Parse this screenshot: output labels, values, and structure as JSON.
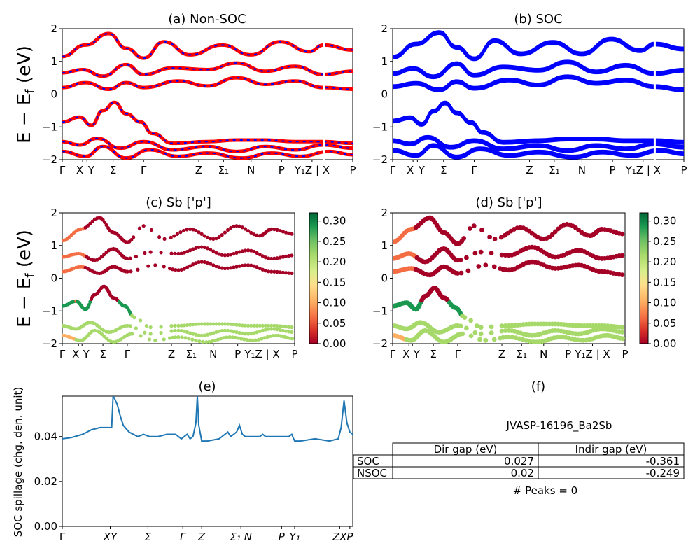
{
  "figure": {
    "jid_label": "JVASP-16196_Ba2Sb",
    "peaks_label": "# Peaks = 0",
    "ylabel_main": "E − E",
    "ylabel_main_sub": "f",
    "ylabel_main_unit": " (eV)",
    "kpath_labels": [
      "Γ",
      "X",
      "Y",
      "Σ",
      "Γ",
      "Z",
      "Σ",
      "N",
      "P",
      "Y",
      "Z | X",
      "P"
    ]
  },
  "colors": {
    "nonsoc_red": "#ff0000",
    "nonsoc_blue_dash": "#0000ff",
    "soc_blue": "#0000ff",
    "spillage_line": "#1f77b4",
    "cmap": [
      "#a50026",
      "#d73027",
      "#f46d43",
      "#fdae61",
      "#fee08b",
      "#d9ef8b",
      "#a6d96a",
      "#66bd63",
      "#1a9850",
      "#006837"
    ]
  },
  "chart_data": [
    {
      "panel": "a",
      "type": "line",
      "title": "(a) Non-SOC",
      "ylabel": "E − E_f (eV)",
      "ylim": [
        -2,
        2
      ],
      "yticks": [
        "2",
        "1",
        "0",
        "−1",
        "−2"
      ],
      "xticks": [
        "Γ",
        "X",
        "Y",
        "Σ",
        "Γ",
        "Z",
        "Σ1",
        "N",
        "P",
        "Y1Z | X",
        "P"
      ],
      "series": [
        {
          "points": [
            [
              0,
              1.15
            ],
            [
              0.08,
              1.5
            ],
            [
              0.16,
              1.85
            ],
            [
              0.22,
              1.4
            ],
            [
              0.28,
              1.1
            ],
            [
              0.35,
              1.6
            ],
            [
              0.44,
              1.2
            ],
            [
              0.55,
              1.5
            ],
            [
              0.65,
              1.2
            ],
            [
              0.75,
              1.6
            ],
            [
              0.85,
              1.3
            ],
            [
              0.9,
              1.5
            ],
            [
              1,
              1.35
            ]
          ]
        },
        {
          "points": [
            [
              0,
              0.65
            ],
            [
              0.07,
              0.75
            ],
            [
              0.14,
              0.55
            ],
            [
              0.22,
              0.9
            ],
            [
              0.28,
              0.6
            ],
            [
              0.38,
              0.8
            ],
            [
              0.5,
              0.75
            ],
            [
              0.6,
              0.95
            ],
            [
              0.7,
              0.7
            ],
            [
              0.8,
              0.85
            ],
            [
              0.9,
              0.6
            ],
            [
              1,
              0.7
            ]
          ]
        },
        {
          "points": [
            [
              0,
              0.2
            ],
            [
              0.08,
              0.35
            ],
            [
              0.16,
              0.15
            ],
            [
              0.22,
              0.35
            ],
            [
              0.28,
              0.2
            ],
            [
              0.4,
              0.4
            ],
            [
              0.5,
              0.25
            ],
            [
              0.6,
              0.5
            ],
            [
              0.7,
              0.3
            ],
            [
              0.8,
              0.4
            ],
            [
              0.9,
              0.2
            ],
            [
              1,
              0.15
            ]
          ]
        },
        {
          "points": [
            [
              0,
              -0.85
            ],
            [
              0.06,
              -0.7
            ],
            [
              0.1,
              -0.95
            ],
            [
              0.14,
              -0.5
            ],
            [
              0.18,
              -0.25
            ],
            [
              0.22,
              -0.6
            ],
            [
              0.27,
              -0.85
            ],
            [
              0.31,
              -1.2
            ],
            [
              0.38,
              -1.5
            ],
            [
              0.5,
              -1.45
            ],
            [
              0.6,
              -1.4
            ],
            [
              0.7,
              -1.4
            ],
            [
              0.8,
              -1.45
            ],
            [
              0.9,
              -1.45
            ],
            [
              1,
              -1.5
            ]
          ]
        },
        {
          "points": [
            [
              0,
              -1.45
            ],
            [
              0.06,
              -1.55
            ],
            [
              0.12,
              -1.35
            ],
            [
              0.2,
              -1.65
            ],
            [
              0.28,
              -1.45
            ],
            [
              0.38,
              -1.7
            ],
            [
              0.5,
              -1.6
            ],
            [
              0.6,
              -1.75
            ],
            [
              0.7,
              -1.6
            ],
            [
              0.8,
              -1.7
            ],
            [
              0.9,
              -1.55
            ],
            [
              1,
              -1.65
            ]
          ]
        },
        {
          "points": [
            [
              0,
              -1.75
            ],
            [
              0.08,
              -1.9
            ],
            [
              0.14,
              -1.6
            ],
            [
              0.22,
              -1.95
            ],
            [
              0.3,
              -1.7
            ],
            [
              0.4,
              -1.9
            ],
            [
              0.5,
              -1.8
            ],
            [
              0.62,
              -1.95
            ],
            [
              0.72,
              -1.8
            ],
            [
              0.82,
              -1.9
            ],
            [
              0.92,
              -1.75
            ],
            [
              1,
              -1.85
            ]
          ]
        }
      ]
    },
    {
      "panel": "b",
      "type": "line",
      "title": "(b) SOC",
      "ylim": [
        -2,
        2
      ],
      "yticks": [
        "2",
        "1",
        "0",
        "−1",
        "−2"
      ],
      "xticks": [
        "Γ",
        "X",
        "Y",
        "Σ",
        "Γ",
        "Z",
        "Σ1",
        "N",
        "P",
        "Y1Z | X",
        "P"
      ],
      "series": [
        {
          "points": [
            [
              0,
              1.1
            ],
            [
              0.08,
              1.5
            ],
            [
              0.16,
              1.85
            ],
            [
              0.22,
              1.4
            ],
            [
              0.28,
              1.05
            ],
            [
              0.35,
              1.6
            ],
            [
              0.44,
              1.2
            ],
            [
              0.55,
              1.55
            ],
            [
              0.65,
              1.2
            ],
            [
              0.75,
              1.65
            ],
            [
              0.85,
              1.3
            ],
            [
              0.9,
              1.5
            ],
            [
              1,
              1.35
            ]
          ]
        },
        {
          "points": [
            [
              0,
              0.6
            ],
            [
              0.07,
              0.75
            ],
            [
              0.14,
              0.5
            ],
            [
              0.22,
              0.9
            ],
            [
              0.28,
              0.55
            ],
            [
              0.38,
              0.8
            ],
            [
              0.5,
              0.7
            ],
            [
              0.6,
              0.95
            ],
            [
              0.7,
              0.65
            ],
            [
              0.8,
              0.85
            ],
            [
              0.9,
              0.6
            ],
            [
              1,
              0.7
            ]
          ]
        },
        {
          "points": [
            [
              0,
              0.2
            ],
            [
              0.08,
              0.3
            ],
            [
              0.16,
              0.1
            ],
            [
              0.22,
              0.35
            ],
            [
              0.28,
              0.15
            ],
            [
              0.4,
              0.4
            ],
            [
              0.5,
              0.25
            ],
            [
              0.6,
              0.5
            ],
            [
              0.7,
              0.3
            ],
            [
              0.8,
              0.4
            ],
            [
              0.9,
              0.2
            ],
            [
              1,
              0.1
            ]
          ]
        },
        {
          "points": [
            [
              0,
              -0.85
            ],
            [
              0.06,
              -0.75
            ],
            [
              0.1,
              -0.95
            ],
            [
              0.14,
              -0.55
            ],
            [
              0.18,
              -0.3
            ],
            [
              0.22,
              -0.6
            ],
            [
              0.27,
              -0.9
            ],
            [
              0.31,
              -1.2
            ],
            [
              0.38,
              -1.5
            ],
            [
              0.5,
              -1.45
            ],
            [
              0.6,
              -1.4
            ],
            [
              0.7,
              -1.4
            ],
            [
              0.8,
              -1.45
            ],
            [
              0.9,
              -1.45
            ],
            [
              1,
              -1.5
            ]
          ]
        },
        {
          "points": [
            [
              0,
              -1.45
            ],
            [
              0.06,
              -1.55
            ],
            [
              0.12,
              -1.35
            ],
            [
              0.2,
              -1.65
            ],
            [
              0.28,
              -1.45
            ],
            [
              0.38,
              -1.7
            ],
            [
              0.5,
              -1.6
            ],
            [
              0.6,
              -1.75
            ],
            [
              0.7,
              -1.6
            ],
            [
              0.8,
              -1.7
            ],
            [
              0.9,
              -1.55
            ],
            [
              1,
              -1.65
            ]
          ]
        },
        {
          "points": [
            [
              0,
              -1.75
            ],
            [
              0.08,
              -1.9
            ],
            [
              0.14,
              -1.6
            ],
            [
              0.22,
              -1.95
            ],
            [
              0.3,
              -1.7
            ],
            [
              0.4,
              -1.9
            ],
            [
              0.5,
              -1.8
            ],
            [
              0.62,
              -1.95
            ],
            [
              0.72,
              -1.8
            ],
            [
              0.82,
              -1.9
            ],
            [
              0.92,
              -1.75
            ],
            [
              1,
              -1.85
            ]
          ]
        }
      ]
    },
    {
      "panel": "c",
      "type": "scatter",
      "title": "(c)  Sb ['p']",
      "ylim": [
        -2,
        2
      ],
      "yticks": [
        "2",
        "1",
        "0",
        "−1",
        "−2"
      ],
      "xticks": [
        "Γ",
        "X",
        "Y",
        "Σ",
        "Γ",
        "Z",
        "Σ1",
        "N",
        "P",
        "Y1Z | X",
        "P"
      ],
      "colorbar_ticks": [
        "0.00",
        "0.05",
        "0.10",
        "0.15",
        "0.20",
        "0.25",
        "0.30"
      ],
      "colorbar_range": [
        0,
        0.32
      ]
    },
    {
      "panel": "d",
      "type": "scatter",
      "title": "(d) Sb ['p']",
      "ylim": [
        -2,
        2
      ],
      "yticks": [
        "2",
        "1",
        "0",
        "−1",
        "−2"
      ],
      "xticks": [
        "Γ",
        "X",
        "Y",
        "Σ",
        "Γ",
        "Z",
        "Σ1",
        "N",
        "P",
        "Y1Z | X",
        "P"
      ],
      "colorbar_ticks": [
        "0.00",
        "0.05",
        "0.10",
        "0.15",
        "0.20",
        "0.25",
        "0.30"
      ],
      "colorbar_range": [
        0,
        0.32
      ]
    },
    {
      "panel": "e",
      "type": "line",
      "title": "(e)",
      "ylabel": "SOC spillage (chg. den. unit)",
      "ylim": [
        0,
        0.058
      ],
      "yticks": [
        "0.04",
        "0.02",
        "0.00"
      ],
      "xticks": [
        "Γ",
        "XY",
        "Σ",
        "Γ",
        "Z",
        "Σ1 N",
        "P",
        "Y1",
        "ZX",
        "P"
      ],
      "series": [
        {
          "name": "",
          "points": [
            [
              0,
              0.039
            ],
            [
              0.03,
              0.0395
            ],
            [
              0.07,
              0.041
            ],
            [
              0.1,
              0.043
            ],
            [
              0.13,
              0.044
            ],
            [
              0.16,
              0.044
            ],
            [
              0.17,
              0.044
            ],
            [
              0.175,
              0.058
            ],
            [
              0.18,
              0.057
            ],
            [
              0.19,
              0.054
            ],
            [
              0.2,
              0.049
            ],
            [
              0.21,
              0.045
            ],
            [
              0.23,
              0.042
            ],
            [
              0.26,
              0.04
            ],
            [
              0.28,
              0.041
            ],
            [
              0.3,
              0.04
            ],
            [
              0.33,
              0.04
            ],
            [
              0.36,
              0.041
            ],
            [
              0.39,
              0.041
            ],
            [
              0.41,
              0.039
            ],
            [
              0.42,
              0.04
            ],
            [
              0.43,
              0.041
            ],
            [
              0.44,
              0.039
            ],
            [
              0.45,
              0.04
            ],
            [
              0.46,
              0.046
            ],
            [
              0.465,
              0.058
            ],
            [
              0.47,
              0.045
            ],
            [
              0.48,
              0.038
            ],
            [
              0.5,
              0.038
            ],
            [
              0.54,
              0.039
            ],
            [
              0.56,
              0.041
            ],
            [
              0.57,
              0.042
            ],
            [
              0.58,
              0.04
            ],
            [
              0.59,
              0.041
            ],
            [
              0.6,
              0.042
            ],
            [
              0.61,
              0.045
            ],
            [
              0.62,
              0.041
            ],
            [
              0.63,
              0.04
            ],
            [
              0.68,
              0.04
            ],
            [
              0.69,
              0.041
            ],
            [
              0.7,
              0.04
            ],
            [
              0.76,
              0.04
            ],
            [
              0.78,
              0.04
            ],
            [
              0.79,
              0.041
            ],
            [
              0.8,
              0.038
            ],
            [
              0.82,
              0.038
            ],
            [
              0.87,
              0.039
            ],
            [
              0.92,
              0.038
            ],
            [
              0.95,
              0.039
            ],
            [
              0.96,
              0.044
            ],
            [
              0.97,
              0.056
            ],
            [
              0.98,
              0.046
            ],
            [
              0.99,
              0.042
            ],
            [
              1,
              0.041
            ]
          ]
        }
      ]
    }
  ],
  "table": {
    "title": "(f)",
    "headers": [
      "",
      "Dir gap (eV)",
      "Indir gap (eV)"
    ],
    "rows": [
      [
        "SOC",
        "0.027",
        "-0.361"
      ],
      [
        "NSOC",
        "0.02",
        "-0.249"
      ]
    ]
  }
}
